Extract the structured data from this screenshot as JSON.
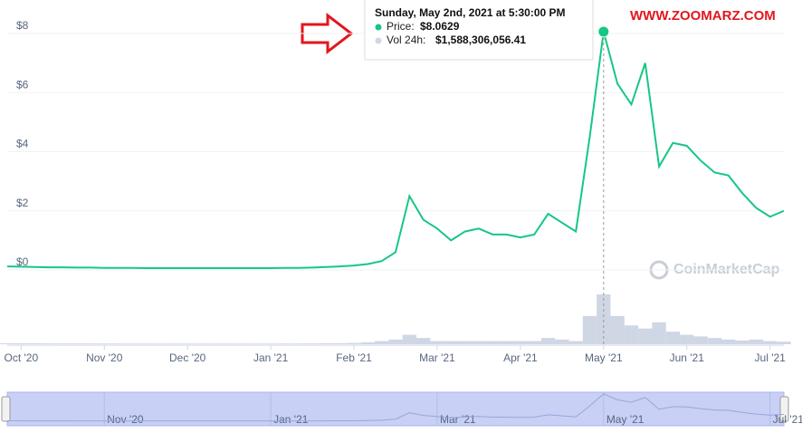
{
  "chart_data": {
    "type": "line",
    "categories": [
      null,
      "Oct '20",
      null,
      null,
      null,
      null,
      null,
      "Nov '20",
      null,
      null,
      null,
      null,
      null,
      "Dec '20",
      null,
      null,
      null,
      null,
      null,
      "Jan '21",
      null,
      null,
      null,
      null,
      null,
      "Feb '21",
      null,
      null,
      null,
      null,
      null,
      "Mar '21",
      null,
      null,
      null,
      null,
      null,
      "Apr '21",
      null,
      null,
      null,
      null,
      null,
      "May '21",
      null,
      null,
      null,
      null,
      null,
      "Jun '21",
      null,
      null,
      null,
      null,
      null,
      "Jul '21",
      null
    ],
    "series": [
      {
        "color": "#16c784",
        "values": [
          0.12,
          0.11,
          0.1,
          0.09,
          0.09,
          0.08,
          0.08,
          0.07,
          0.07,
          0.07,
          0.06,
          0.06,
          0.06,
          0.06,
          0.06,
          0.06,
          0.06,
          0.06,
          0.06,
          0.06,
          0.07,
          0.07,
          0.08,
          0.1,
          0.12,
          0.15,
          0.2,
          0.3,
          0.6,
          2.5,
          1.7,
          1.4,
          1.0,
          1.3,
          1.4,
          1.2,
          1.2,
          1.1,
          1.2,
          1.9,
          1.6,
          1.3,
          4.5,
          8.0629,
          6.3,
          5.6,
          7.0,
          3.5,
          4.3,
          4.2,
          3.7,
          3.3,
          3.2,
          2.6,
          2.1,
          1.8,
          2.0
        ]
      }
    ],
    "volume": {
      "color": "#cfd6e4",
      "values": [
        30000000,
        30000000,
        28000000,
        26000000,
        25000000,
        24000000,
        23000000,
        22000000,
        22000000,
        21000000,
        20000000,
        20000000,
        20000000,
        20000000,
        20000000,
        20000000,
        20000000,
        20000000,
        20000000,
        20000000,
        22000000,
        22000000,
        24000000,
        28000000,
        32000000,
        40000000,
        60000000,
        100000000,
        150000000,
        300000000,
        200000000,
        100000000,
        100000000,
        100000000,
        100000000,
        100000000,
        100000000,
        100000000,
        100000000,
        200000000,
        150000000,
        100000000,
        900000000,
        1588306056.41,
        900000000,
        600000000,
        500000000,
        700000000,
        400000000,
        300000000,
        250000000,
        200000000,
        150000000,
        120000000,
        150000000,
        100000000,
        80000000
      ]
    },
    "ylim": [
      0,
      8
    ],
    "yticks": [
      {
        "value": 0,
        "label": "$0"
      },
      {
        "value": 2,
        "label": "$2"
      },
      {
        "value": 4,
        "label": "$4"
      },
      {
        "value": 6,
        "label": "$6"
      },
      {
        "value": 8,
        "label": "$8"
      }
    ],
    "grid": true,
    "tooltip": {
      "title": "Sunday, May 2nd, 2021 at 5:30:00 PM",
      "price_label": "Price:",
      "price_value": "$8.0629",
      "volume_label": "Vol 24h:",
      "volume_value": "$1,588,306,056.41"
    },
    "watermark": "CoinMarketCap",
    "site": "WWW.ZOOMARZ.COM"
  }
}
